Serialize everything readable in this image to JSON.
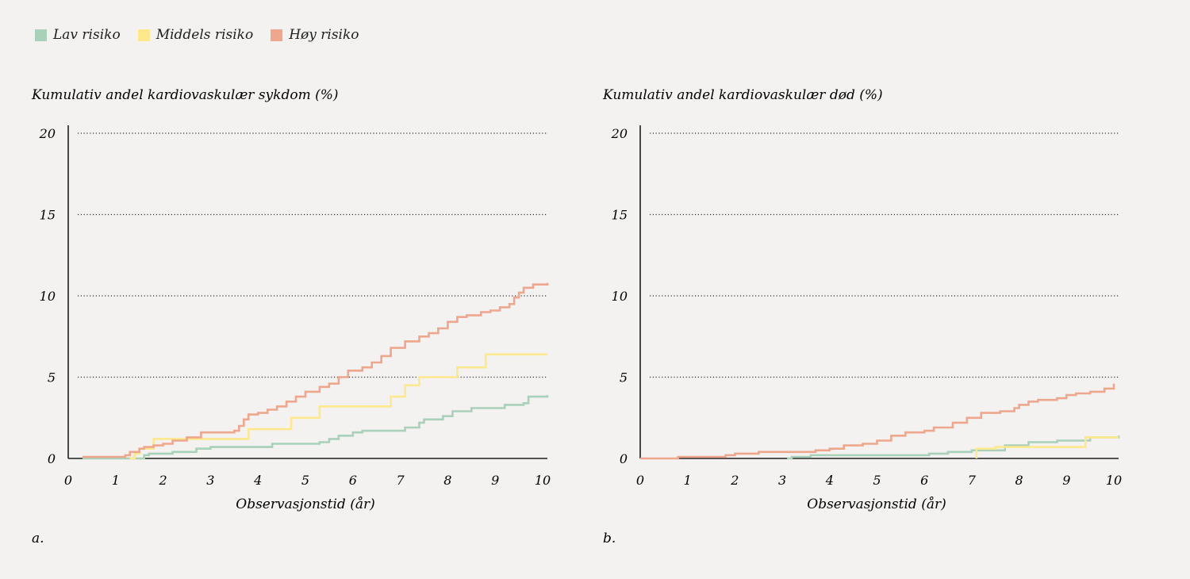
{
  "legend": [
    {
      "label": "Lav risiko",
      "color": "#a9d0b8"
    },
    {
      "label": "Middels risiko",
      "color": "#fde88c"
    },
    {
      "label": "Høy risiko",
      "color": "#eea68c"
    }
  ],
  "chart_data": [
    {
      "type": "line",
      "step": true,
      "panel_label": "a.",
      "title": "Kumulativ andel kardiovaskulær sykdom (%)",
      "xlabel": "Observasjonstid (år)",
      "ylabel": "",
      "xlim": [
        0,
        10
      ],
      "ylim": [
        0,
        20
      ],
      "xticks": [
        0,
        1,
        2,
        3,
        4,
        5,
        6,
        7,
        8,
        9,
        10
      ],
      "yticks": [
        0,
        5,
        10,
        15,
        20
      ],
      "grid": "horizontal dotted",
      "series": [
        {
          "name": "Lav risiko",
          "color": "#a9d0b8",
          "points": [
            [
              0.3,
              0
            ],
            [
              1.5,
              0
            ],
            [
              1.6,
              0.2
            ],
            [
              1.7,
              0.3
            ],
            [
              2.2,
              0.4
            ],
            [
              2.7,
              0.6
            ],
            [
              3.0,
              0.7
            ],
            [
              4.2,
              0.7
            ],
            [
              4.3,
              0.9
            ],
            [
              5.3,
              1.0
            ],
            [
              5.5,
              1.2
            ],
            [
              5.7,
              1.4
            ],
            [
              6.0,
              1.6
            ],
            [
              6.2,
              1.7
            ],
            [
              7.1,
              1.9
            ],
            [
              7.4,
              2.2
            ],
            [
              7.5,
              2.4
            ],
            [
              7.9,
              2.6
            ],
            [
              8.1,
              2.9
            ],
            [
              8.5,
              3.1
            ],
            [
              9.2,
              3.3
            ],
            [
              9.6,
              3.4
            ],
            [
              9.7,
              3.8
            ],
            [
              10.1,
              3.9
            ]
          ]
        },
        {
          "name": "Middels risiko",
          "color": "#fde88c",
          "points": [
            [
              1.3,
              0
            ],
            [
              1.4,
              0.3
            ],
            [
              1.5,
              0.6
            ],
            [
              1.8,
              1.2
            ],
            [
              3.8,
              1.8
            ],
            [
              4.7,
              2.5
            ],
            [
              5.3,
              3.2
            ],
            [
              6.8,
              3.8
            ],
            [
              7.1,
              4.5
            ],
            [
              7.4,
              5.0
            ],
            [
              8.2,
              5.6
            ],
            [
              8.8,
              6.4
            ],
            [
              10.1,
              6.4
            ]
          ]
        },
        {
          "name": "Høy risiko",
          "color": "#eea68c",
          "points": [
            [
              0.3,
              0.1
            ],
            [
              1.1,
              0.1
            ],
            [
              1.2,
              0.2
            ],
            [
              1.3,
              0.4
            ],
            [
              1.5,
              0.6
            ],
            [
              1.6,
              0.7
            ],
            [
              1.8,
              0.8
            ],
            [
              2.0,
              0.9
            ],
            [
              2.2,
              1.1
            ],
            [
              2.5,
              1.3
            ],
            [
              2.8,
              1.6
            ],
            [
              3.5,
              1.7
            ],
            [
              3.6,
              2.0
            ],
            [
              3.7,
              2.4
            ],
            [
              3.8,
              2.7
            ],
            [
              4.0,
              2.8
            ],
            [
              4.2,
              3.0
            ],
            [
              4.4,
              3.2
            ],
            [
              4.6,
              3.5
            ],
            [
              4.8,
              3.8
            ],
            [
              5.0,
              4.1
            ],
            [
              5.3,
              4.4
            ],
            [
              5.5,
              4.6
            ],
            [
              5.7,
              5.0
            ],
            [
              5.9,
              5.4
            ],
            [
              6.2,
              5.6
            ],
            [
              6.4,
              5.9
            ],
            [
              6.6,
              6.3
            ],
            [
              6.8,
              6.8
            ],
            [
              7.1,
              7.2
            ],
            [
              7.4,
              7.5
            ],
            [
              7.6,
              7.7
            ],
            [
              7.8,
              8.0
            ],
            [
              8.0,
              8.4
            ],
            [
              8.2,
              8.7
            ],
            [
              8.4,
              8.8
            ],
            [
              8.7,
              9.0
            ],
            [
              8.9,
              9.1
            ],
            [
              9.1,
              9.3
            ],
            [
              9.3,
              9.5
            ],
            [
              9.4,
              9.9
            ],
            [
              9.5,
              10.2
            ],
            [
              9.6,
              10.5
            ],
            [
              9.8,
              10.7
            ],
            [
              10.1,
              10.8
            ]
          ]
        }
      ]
    },
    {
      "type": "line",
      "step": true,
      "panel_label": "b.",
      "title": "Kumulativ andel kardiovaskulær død (%)",
      "xlabel": "Observasjonstid (år)",
      "ylabel": "",
      "xlim": [
        0,
        10
      ],
      "ylim": [
        0,
        20
      ],
      "xticks": [
        0,
        1,
        2,
        3,
        4,
        5,
        6,
        7,
        8,
        9,
        10
      ],
      "yticks": [
        0,
        5,
        10,
        15,
        20
      ],
      "grid": "horizontal dotted",
      "series": [
        {
          "name": "Lav risiko",
          "color": "#a9d0b8",
          "points": [
            [
              3.1,
              0
            ],
            [
              3.2,
              0.1
            ],
            [
              3.6,
              0.2
            ],
            [
              6.1,
              0.3
            ],
            [
              6.5,
              0.4
            ],
            [
              7.0,
              0.5
            ],
            [
              7.7,
              0.8
            ],
            [
              8.2,
              1.0
            ],
            [
              8.8,
              1.1
            ],
            [
              9.5,
              1.3
            ],
            [
              10.1,
              1.4
            ]
          ]
        },
        {
          "name": "Middels risiko",
          "color": "#fde88c",
          "points": [
            [
              7.1,
              0
            ],
            [
              7.1,
              0.6
            ],
            [
              7.5,
              0.7
            ],
            [
              9.4,
              1.3
            ],
            [
              10.1,
              1.3
            ]
          ]
        },
        {
          "name": "Høy risiko",
          "color": "#eea68c",
          "points": [
            [
              0,
              0
            ],
            [
              0.8,
              0.1
            ],
            [
              1.8,
              0.2
            ],
            [
              2.0,
              0.3
            ],
            [
              2.5,
              0.4
            ],
            [
              3.7,
              0.5
            ],
            [
              4.0,
              0.6
            ],
            [
              4.3,
              0.8
            ],
            [
              4.7,
              0.9
            ],
            [
              5.0,
              1.1
            ],
            [
              5.3,
              1.4
            ],
            [
              5.6,
              1.6
            ],
            [
              6.0,
              1.7
            ],
            [
              6.2,
              1.9
            ],
            [
              6.6,
              2.2
            ],
            [
              6.9,
              2.5
            ],
            [
              7.2,
              2.8
            ],
            [
              7.6,
              2.9
            ],
            [
              7.9,
              3.1
            ],
            [
              8.0,
              3.3
            ],
            [
              8.2,
              3.5
            ],
            [
              8.4,
              3.6
            ],
            [
              8.8,
              3.7
            ],
            [
              9.0,
              3.9
            ],
            [
              9.2,
              4.0
            ],
            [
              9.5,
              4.1
            ],
            [
              9.8,
              4.3
            ],
            [
              10.0,
              4.6
            ]
          ]
        }
      ]
    }
  ]
}
